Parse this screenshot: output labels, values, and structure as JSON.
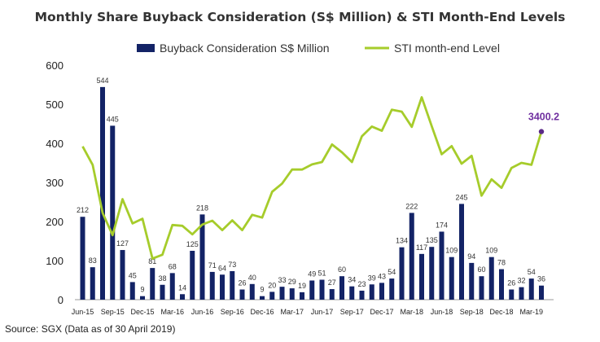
{
  "chart_data": {
    "type": "bar",
    "title": "Monthly Share Buyback Consideration (S$ Million) & STI Month-End Levels",
    "source": "Source: SGX (Data as of 30 April 2019)",
    "colors": {
      "bar": "#132366",
      "line": "#a6cc2b",
      "highlight_point": "#5b2a86",
      "highlight_label": "#7030a0"
    },
    "legend_position": "top",
    "grid": false,
    "y_axis": {
      "ylim": [
        0,
        600
      ],
      "ticks": [
        "0",
        "100",
        "200",
        "300",
        "400",
        "500",
        "600"
      ]
    },
    "x_tick_labels": [
      {
        "index": 0,
        "label": "Jun-15"
      },
      {
        "index": 3,
        "label": "Sep-15"
      },
      {
        "index": 6,
        "label": "Dec-15"
      },
      {
        "index": 9,
        "label": "Mar-16"
      },
      {
        "index": 12,
        "label": "Jun-16"
      },
      {
        "index": 15,
        "label": "Sep-16"
      },
      {
        "index": 18,
        "label": "Dec-16"
      },
      {
        "index": 21,
        "label": "Mar-17"
      },
      {
        "index": 24,
        "label": "Jun-17"
      },
      {
        "index": 27,
        "label": "Sep-17"
      },
      {
        "index": 30,
        "label": "Dec-17"
      },
      {
        "index": 33,
        "label": "Mar-18"
      },
      {
        "index": 36,
        "label": "Jun-18"
      },
      {
        "index": 39,
        "label": "Sep-18"
      },
      {
        "index": 42,
        "label": "Dec-18"
      },
      {
        "index": 45,
        "label": "Mar-19"
      }
    ],
    "series": [
      {
        "name": "Buyback Consideration S$ Million",
        "kind": "bar",
        "values": [
          212,
          83,
          544,
          445,
          127,
          45,
          9,
          81,
          38,
          68,
          14,
          125,
          218,
          71,
          64,
          73,
          26,
          40,
          9,
          20,
          33,
          29,
          19,
          49,
          51,
          27,
          60,
          34,
          23,
          39,
          43,
          54,
          134,
          222,
          117,
          135,
          174,
          109,
          245,
          94,
          60,
          109,
          78,
          26,
          32,
          54,
          36
        ],
        "value_labels": [
          "212",
          "83",
          "544",
          "445",
          "127",
          "45",
          "9",
          "81",
          "38",
          "68",
          "14",
          "125",
          "218",
          "71",
          "64",
          "73",
          "26",
          "40",
          "9",
          "20",
          "33",
          "29",
          "19",
          "49",
          "51",
          "27",
          "60",
          "34",
          "23",
          "39",
          "43",
          "54",
          "134",
          "222",
          "117",
          "135",
          "174",
          "109",
          "245",
          "94",
          "60",
          "109",
          "78",
          "26",
          "32",
          "54",
          "36"
        ]
      },
      {
        "name": "STI month-end Level",
        "kind": "line",
        "values": [
          392,
          345,
          222,
          165,
          257,
          195,
          207,
          105,
          115,
          191,
          189,
          167,
          192,
          202,
          178,
          203,
          178,
          217,
          210,
          276,
          297,
          333,
          333,
          346,
          352,
          397,
          377,
          352,
          418,
          443,
          432,
          486,
          481,
          442,
          518,
          444,
          372,
          393,
          348,
          368,
          266,
          308,
          286,
          337,
          350,
          345,
          430
        ]
      }
    ],
    "annotation": {
      "index": 46,
      "label": "3400.2"
    }
  }
}
